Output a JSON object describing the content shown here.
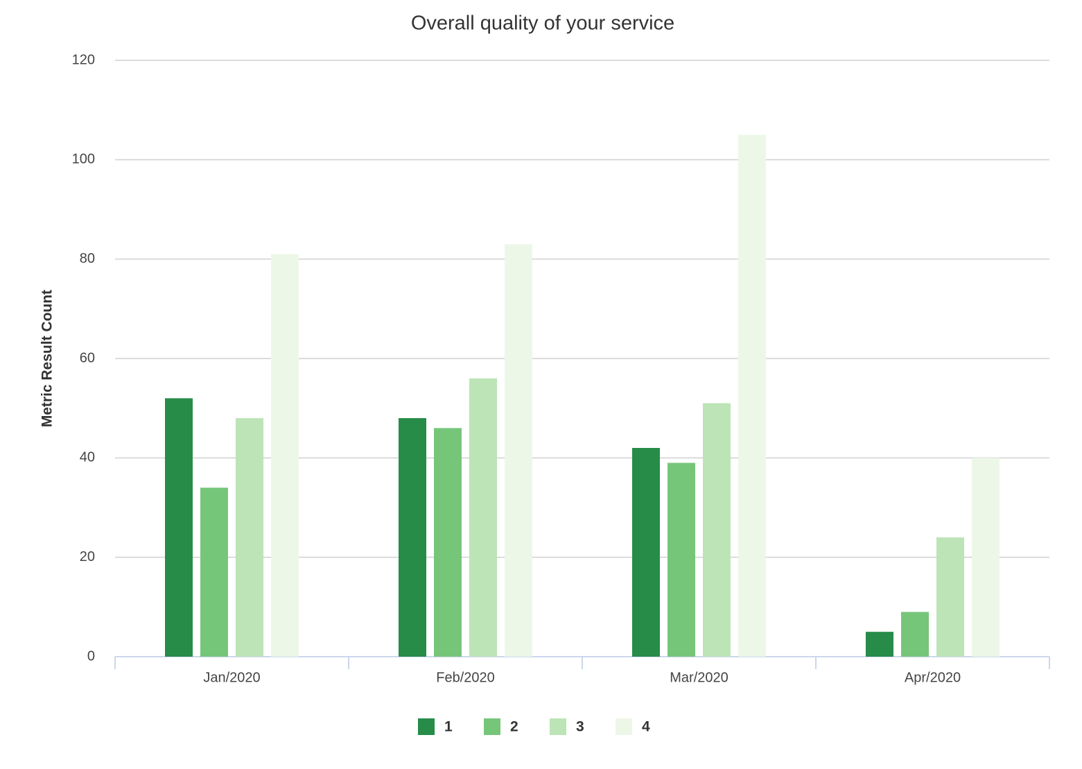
{
  "chart_data": {
    "type": "bar",
    "title": "Overall quality of your service",
    "y_label": "Metric Result Count",
    "categories": [
      "Jan/2020",
      "Feb/2020",
      "Mar/2020",
      "Apr/2020"
    ],
    "series": [
      {
        "name": "1",
        "color": "#268c48",
        "values": [
          52,
          48,
          42,
          5
        ]
      },
      {
        "name": "2",
        "color": "#76c67a",
        "values": [
          34,
          46,
          39,
          9
        ]
      },
      {
        "name": "3",
        "color": "#bce4b6",
        "values": [
          48,
          56,
          51,
          24
        ]
      },
      {
        "name": "4",
        "color": "#edf7e8",
        "values": [
          81,
          83,
          105,
          40
        ]
      }
    ],
    "ylim": [
      0,
      120
    ],
    "yticks": [
      0,
      20,
      40,
      60,
      80,
      100,
      120
    ],
    "grid": true,
    "legend": "bottom"
  }
}
